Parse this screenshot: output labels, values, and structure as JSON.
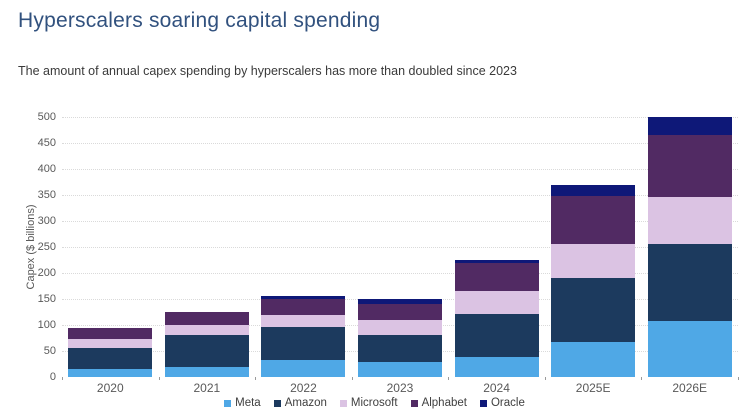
{
  "header": {
    "title": "Hyperscalers soaring capital spending",
    "subtitle": "The amount of annual capex spending by hyperscalers has more than doubled since 2023"
  },
  "chart_data": {
    "type": "bar",
    "stacked": true,
    "title": "Hyperscalers soaring capital spending",
    "xlabel": "",
    "ylabel": "Capex ($ billions)",
    "ylim": [
      0,
      500
    ],
    "ytick_step": 50,
    "grid": "horizontal-dotted",
    "legend_position": "bottom",
    "categories": [
      "2020",
      "2021",
      "2022",
      "2023",
      "2024",
      "2025E",
      "2026E"
    ],
    "series": [
      {
        "name": "Meta",
        "color": "#4FA8E6",
        "values": [
          15,
          19,
          32,
          28,
          39,
          68,
          108
        ]
      },
      {
        "name": "Amazon",
        "color": "#1C3A5E",
        "values": [
          40,
          61,
          64,
          53,
          83,
          122,
          147
        ]
      },
      {
        "name": "Microsoft",
        "color": "#DBC3E3",
        "values": [
          18,
          21,
          24,
          28,
          44,
          66,
          92
        ]
      },
      {
        "name": "Alphabet",
        "color": "#512A63",
        "values": [
          22,
          25,
          31,
          32,
          53,
          92,
          118
        ]
      },
      {
        "name": "Oracle",
        "color": "#0E1878",
        "values": [
          0,
          0,
          4,
          9,
          7,
          22,
          35
        ]
      }
    ],
    "totals": [
      95,
      126,
      155,
      150,
      226,
      370,
      500
    ]
  },
  "colors": {
    "title": "#31517E",
    "subtitle": "#3A3A3A",
    "axis_text": "#595959",
    "gridline": "#DADADA",
    "background": "#FFFFFF"
  }
}
